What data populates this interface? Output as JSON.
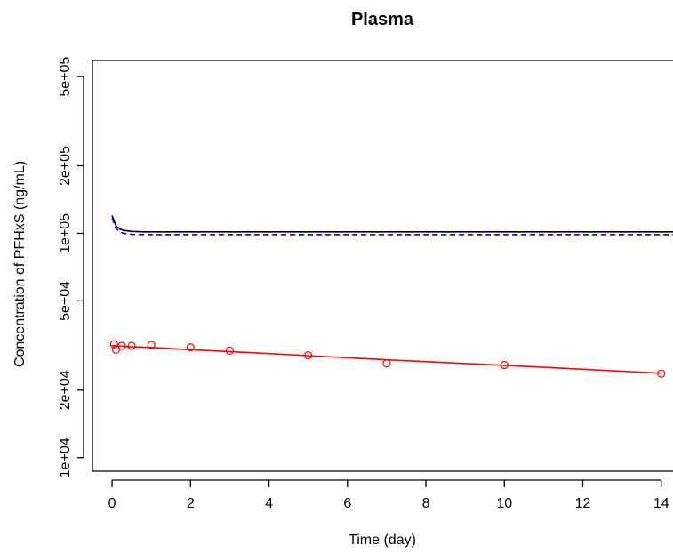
{
  "chart_data": {
    "type": "line",
    "title": "Plasma",
    "xlabel": "Time (day)",
    "ylabel": "Concentration  of PFHxS (ng/mL)",
    "xlim": [
      -0.5,
      14.3
    ],
    "ylim": [
      8700,
      590000
    ],
    "yscale": "log",
    "x_ticks": [
      0,
      2,
      4,
      6,
      8,
      10,
      12,
      14
    ],
    "x_tick_labels": [
      "0",
      "2",
      "4",
      "6",
      "8",
      "10",
      "12",
      "14"
    ],
    "y_ticks": [
      10000,
      20000,
      50000,
      100000,
      200000,
      500000
    ],
    "y_tick_labels": [
      "1e+04",
      "2e+04",
      "5e+04",
      "1e+05",
      "2e+05",
      "5e+05"
    ],
    "grid": false,
    "series": [
      {
        "style": "line",
        "color": "#000000",
        "dash": "solid",
        "x": [
          0,
          0.05,
          0.1,
          0.2,
          0.3,
          0.5,
          0.8,
          1,
          1.5,
          2,
          3,
          5,
          7,
          10,
          14.3
        ],
        "values": [
          120000,
          114000,
          108000,
          104500,
          103000,
          102000,
          101500,
          101500,
          101500,
          101500,
          101500,
          101500,
          101500,
          101500,
          101500
        ]
      },
      {
        "style": "line",
        "color": "#0000ff",
        "dash": "dashed",
        "x": [
          0,
          0.05,
          0.1,
          0.2,
          0.3,
          0.5,
          0.8,
          1,
          1.5,
          2,
          3,
          5,
          7,
          10,
          14.3
        ],
        "values": [
          117000,
          111000,
          105000,
          101500,
          100000,
          99000,
          98800,
          98700,
          98700,
          98700,
          98700,
          98700,
          98700,
          98700,
          98700
        ]
      },
      {
        "style": "line",
        "color": "#ff0000",
        "dash": "solid",
        "x": [
          0,
          0.1,
          0.25,
          0.5,
          1,
          2,
          3,
          5,
          7,
          10,
          14
        ],
        "values": [
          31600,
          31500,
          31400,
          31200,
          31000,
          30300,
          29700,
          28500,
          27300,
          25800,
          23800
        ]
      },
      {
        "style": "points",
        "color": "#ff0000",
        "x": [
          0.05,
          0.1,
          0.25,
          0.5,
          1,
          2,
          3,
          5,
          7,
          10,
          14
        ],
        "values": [
          32000,
          30300,
          31500,
          31500,
          31800,
          31000,
          30000,
          28600,
          26300,
          25900,
          23700
        ]
      }
    ]
  }
}
